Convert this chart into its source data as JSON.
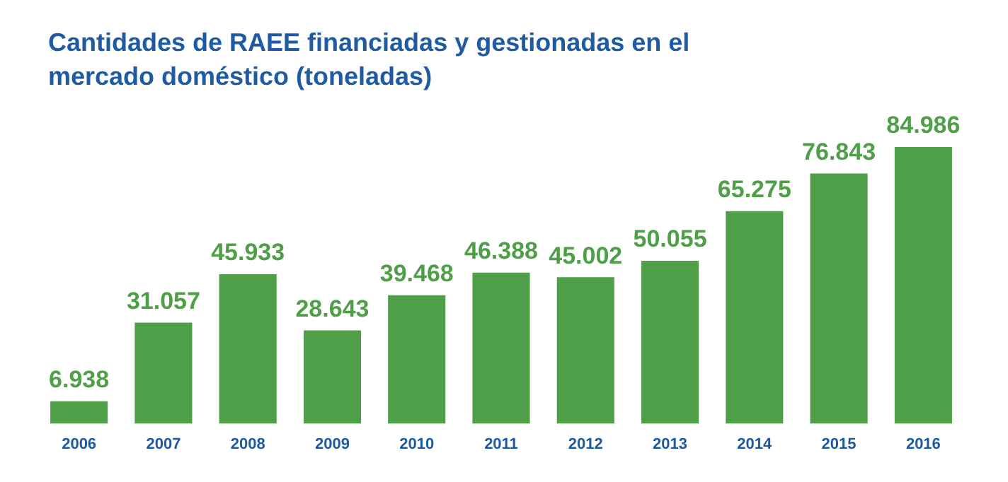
{
  "chart_data": {
    "type": "bar",
    "title": "Cantidades de RAEE financiadas y gestionadas en el mercado doméstico (toneladas)",
    "categories": [
      "2006",
      "2007",
      "2008",
      "2009",
      "2010",
      "2011",
      "2012",
      "2013",
      "2014",
      "2015",
      "2016"
    ],
    "values": [
      6938,
      31057,
      45933,
      28643,
      39468,
      46388,
      45002,
      50055,
      65275,
      76843,
      84986
    ],
    "value_labels": [
      "6.938",
      "31.057",
      "45.933",
      "28.643",
      "39.468",
      "46.388",
      "45.002",
      "50.055",
      "65.275",
      "76.843",
      "84.986"
    ],
    "color": "#4f9f48",
    "grid": false,
    "legend": false,
    "tick_labels": "x"
  }
}
